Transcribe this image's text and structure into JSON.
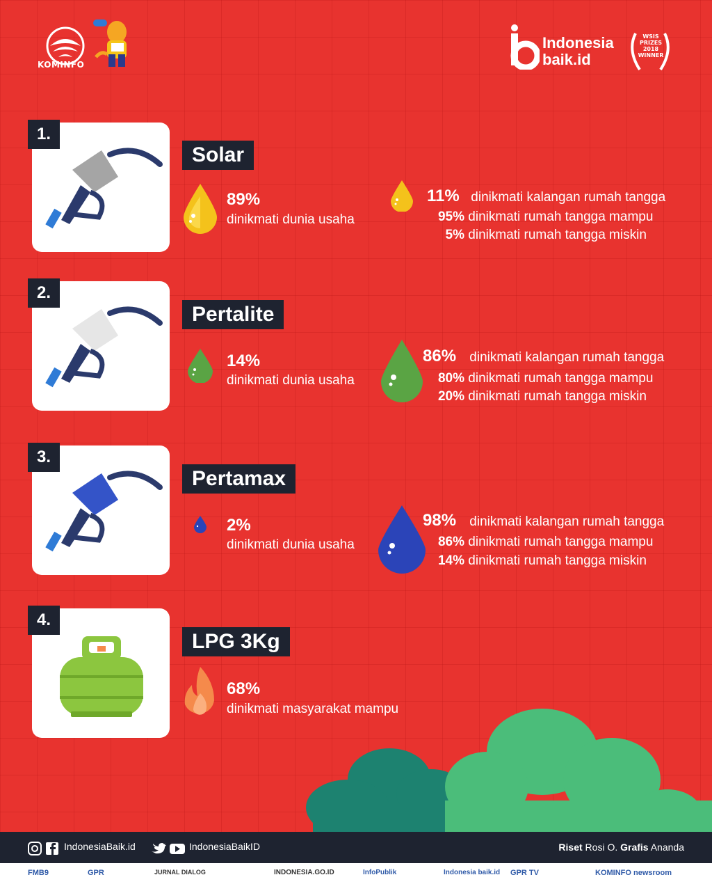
{
  "header": {
    "kominfo_label": "KOMINFO",
    "ib_line1": "Indonesia",
    "ib_line2": "baik.id",
    "wsis_line1": "WSIS",
    "wsis_line2": "PRIZES",
    "wsis_line3": "2018",
    "wsis_line4": "WINNER"
  },
  "items": [
    {
      "number": "1.",
      "title": "Solar",
      "left_pct": "89%",
      "left_label": "dinikmati dunia usaha",
      "right_pct": "11%",
      "right_label": "dinikmati kalangan rumah tangga",
      "line2_pct": "95%",
      "line2_label": "dinikmati rumah tangga mampu",
      "line3_pct": "5%",
      "line3_label": "dinikmati rumah tangga miskin",
      "color": "#f4c21b",
      "nozzle_color": "#a5a5a5"
    },
    {
      "number": "2.",
      "title": "Pertalite",
      "left_pct": "14%",
      "left_label": "dinikmati dunia usaha",
      "right_pct": "86%",
      "right_label": "dinikmati kalangan rumah tangga",
      "line2_pct": "80%",
      "line2_label": "dinikmati rumah tangga mampu",
      "line3_pct": "20%",
      "line3_label": "dinikmati rumah tangga miskin",
      "color": "#5aa444",
      "nozzle_color": "#e6e6e6"
    },
    {
      "number": "3.",
      "title": "Pertamax",
      "left_pct": "2%",
      "left_label": "dinikmati dunia usaha",
      "right_pct": "98%",
      "right_label": "dinikmati kalangan rumah tangga",
      "line2_pct": "86%",
      "line2_label": "dinikmati rumah tangga mampu",
      "line3_pct": "14%",
      "line3_label": "dinikmati rumah tangga miskin",
      "color": "#2b44b8",
      "nozzle_color": "#3454c8"
    },
    {
      "number": "4.",
      "title": "LPG 3Kg",
      "left_pct": "68%",
      "left_label": "dinikmati masyarakat mampu",
      "color": "#f58a4b",
      "tank_color": "#8cc63f"
    }
  ],
  "footer": {
    "social1": "IndonesiaBaik.id",
    "social2": "IndonesiaBaikID",
    "riset_label": "Riset",
    "riset_name": "Rosi O.",
    "grafis_label": "Grafis",
    "grafis_name": "Ananda",
    "partners": [
      "FMB9",
      "GPR",
      "JURNAL DIALOG",
      "INDONESIA.GO.ID",
      "InfoPublik",
      "Indonesia baik.id",
      "GPR TV",
      "KOMINFO newsroom"
    ]
  }
}
